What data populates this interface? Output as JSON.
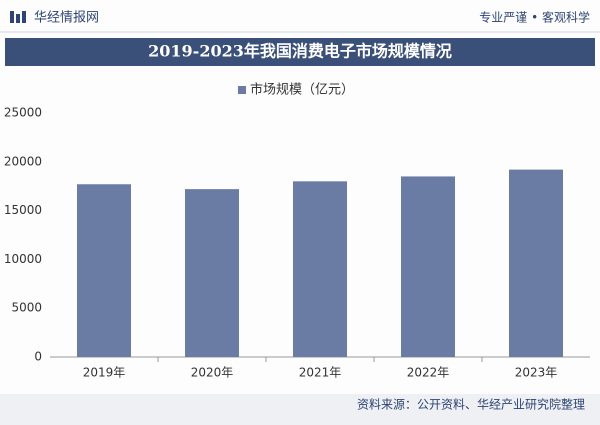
{
  "header": {
    "brand": "华经情报网",
    "slogan": "专业严谨 • 客观科学"
  },
  "chart_data": {
    "type": "bar",
    "title": "2019-2023年我国消费电子市场规模情况",
    "categories": [
      "2019年",
      "2020年",
      "2021年",
      "2022年",
      "2023年"
    ],
    "series": [
      {
        "name": "市场规模（亿元）",
        "color": "#6a7ca3",
        "values": [
          17700,
          17200,
          18000,
          18500,
          19200
        ]
      }
    ],
    "ylim": [
      0,
      25000
    ],
    "yticks": [
      0,
      5000,
      10000,
      15000,
      20000,
      25000
    ],
    "grid": false
  },
  "footer": {
    "source": "资料来源：公开资料、华经产业研究院整理"
  }
}
